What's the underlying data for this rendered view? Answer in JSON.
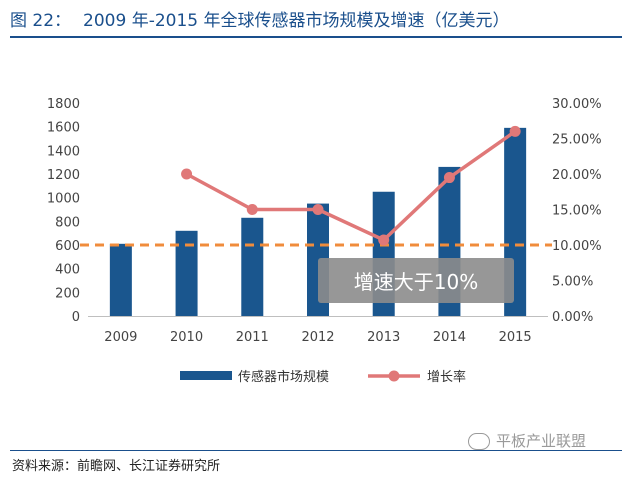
{
  "header": {
    "figure_no": "图 22：",
    "title": "2009 年-2015 年全球传感器市场规模及增速（亿美元）"
  },
  "chart_data": {
    "type": "bar+line",
    "categories": [
      "2009",
      "2010",
      "2011",
      "2012",
      "2013",
      "2014",
      "2015"
    ],
    "series": [
      {
        "name": "传感器市场规模",
        "type": "bar",
        "axis": "left",
        "values": [
          610,
          720,
          830,
          950,
          1050,
          1260,
          1590
        ],
        "color": "#1a568e"
      },
      {
        "name": "增长率",
        "type": "line",
        "axis": "right",
        "values": [
          null,
          0.2,
          0.15,
          0.15,
          0.107,
          0.195,
          0.26
        ],
        "color": "#e07878"
      }
    ],
    "reference_line": {
      "axis": "right",
      "value": 0.1,
      "style": "dashed",
      "color": "#f08c3c"
    },
    "y_left": {
      "min": 0,
      "max": 1800,
      "step": 200,
      "tick_labels": [
        "0",
        "200",
        "400",
        "600",
        "800",
        "1000",
        "1200",
        "1400",
        "1600",
        "1800"
      ]
    },
    "y_right": {
      "min": 0,
      "max": 0.3,
      "step": 0.05,
      "tick_labels": [
        "0.00%",
        "5.00%",
        "10.00%",
        "15.00%",
        "20.00%",
        "25.00%",
        "30.00%"
      ]
    },
    "annotation": {
      "text": "增速大于10%"
    },
    "legend": {
      "position": "bottom",
      "entries": [
        "传感器市场规模",
        "增长率"
      ]
    }
  },
  "footer": {
    "source": "资料来源：前瞻网、长江证券研究所",
    "watermark": "平板产业联盟"
  }
}
